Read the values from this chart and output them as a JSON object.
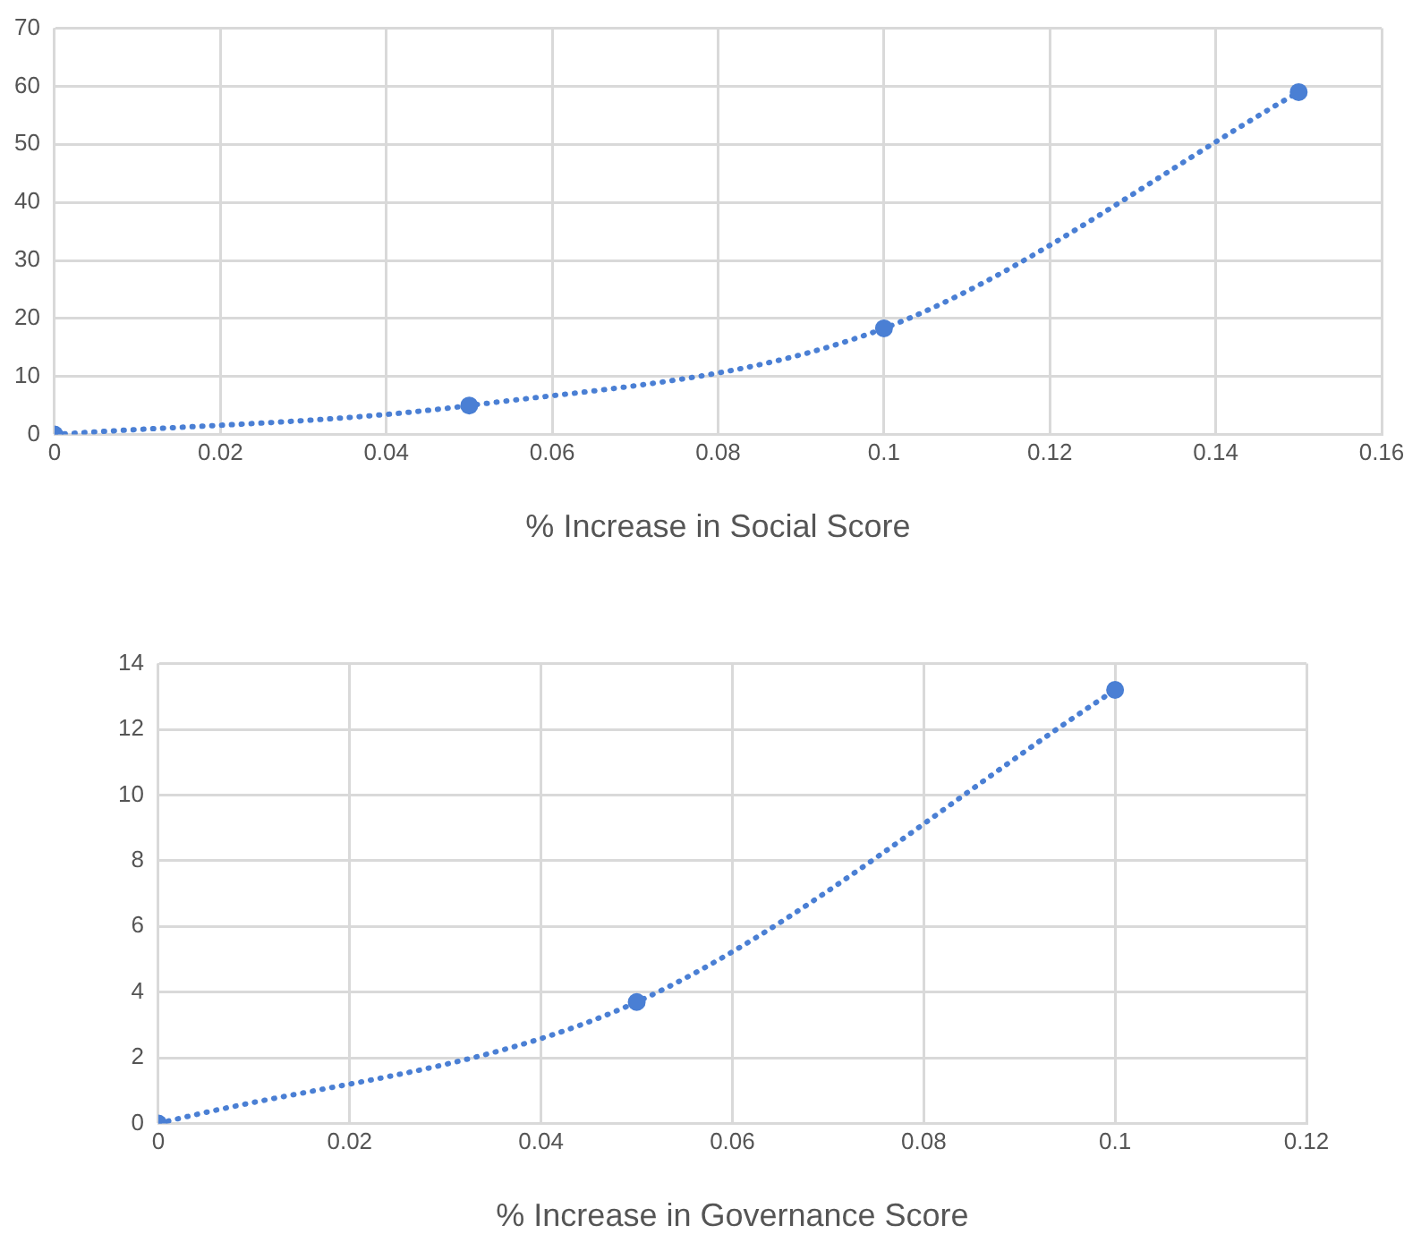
{
  "chart_data": [
    {
      "type": "line",
      "xlabel": "% Increase in Social Score",
      "x": [
        0,
        0.05,
        0.1,
        0.15
      ],
      "values": [
        0,
        5,
        18.3,
        59
      ],
      "color": "#4a7fd4",
      "xlim": [
        0,
        0.16
      ],
      "xticks": [
        0,
        0.02,
        0.04,
        0.06,
        0.08,
        0.1,
        0.12,
        0.14,
        0.16
      ],
      "ylim": [
        0,
        70
      ],
      "yticks": [
        0,
        10,
        20,
        30,
        40,
        50,
        60,
        70
      ],
      "grid": true,
      "marker": "circle",
      "line_style": "dotted"
    },
    {
      "type": "line",
      "xlabel": "% Increase in Governance Score",
      "x": [
        0,
        0.05,
        0.1
      ],
      "values": [
        0,
        3.7,
        13.2
      ],
      "color": "#4a7fd4",
      "xlim": [
        0,
        0.12
      ],
      "xticks": [
        0,
        0.02,
        0.04,
        0.06,
        0.08,
        0.1,
        0.12
      ],
      "ylim": [
        0,
        14
      ],
      "yticks": [
        0,
        2,
        4,
        6,
        8,
        10,
        12,
        14
      ],
      "grid": true,
      "marker": "circle",
      "line_style": "dotted"
    }
  ]
}
